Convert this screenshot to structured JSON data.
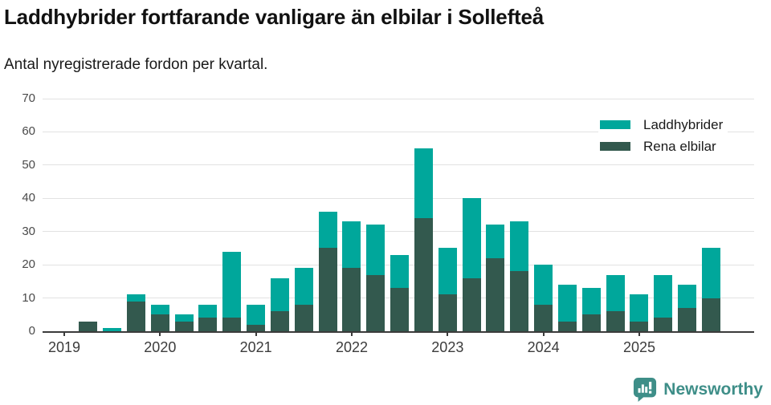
{
  "header": {
    "title": "Laddhybrider fortfarande vanligare än elbilar i Sollefteå",
    "subtitle": "Antal nyregistrerade fordon per kvartal."
  },
  "footer": {
    "brand": "Newsworthy",
    "brand_color": "#3e8e88",
    "logo_icon": "bar-chart-speech-bubble-icon"
  },
  "chart_data": {
    "type": "bar",
    "stacked": true,
    "title": "Laddhybrider fortfarande vanligare än elbilar i Sollefteå",
    "subtitle": "Antal nyregistrerade fordon per kvartal.",
    "categories": [
      "2019 Q1",
      "2019 Q2",
      "2019 Q3",
      "2019 Q4",
      "2020 Q1",
      "2020 Q2",
      "2020 Q3",
      "2020 Q4",
      "2021 Q1",
      "2021 Q2",
      "2021 Q3",
      "2021 Q4",
      "2022 Q1",
      "2022 Q2",
      "2022 Q3",
      "2022 Q4",
      "2023 Q1",
      "2023 Q2",
      "2023 Q3",
      "2023 Q4",
      "2024 Q1",
      "2024 Q2",
      "2024 Q3",
      "2024 Q4",
      "2025 Q1",
      "2025 Q2",
      "2025 Q3",
      "2025 Q4"
    ],
    "series": [
      {
        "name": "Laddhybrider",
        "color": "#00a79b",
        "values": [
          0,
          0,
          1,
          2,
          3,
          2,
          4,
          20,
          6,
          10,
          11,
          11,
          14,
          15,
          10,
          21,
          14,
          24,
          10,
          15,
          12,
          11,
          8,
          11,
          8,
          13,
          7,
          15
        ]
      },
      {
        "name": "Rena elbilar",
        "color": "#33594e",
        "values": [
          0,
          3,
          0,
          9,
          5,
          3,
          4,
          4,
          2,
          6,
          8,
          25,
          19,
          17,
          13,
          34,
          11,
          16,
          22,
          18,
          8,
          3,
          5,
          6,
          3,
          4,
          7,
          10
        ]
      }
    ],
    "stack_totals": [
      0,
      3,
      1,
      11,
      8,
      5,
      8,
      24,
      8,
      16,
      19,
      36,
      33,
      32,
      23,
      55,
      25,
      40,
      32,
      33,
      20,
      14,
      13,
      17,
      11,
      17,
      14,
      25
    ],
    "stack_bottom_series": "Rena elbilar",
    "xlabel": "",
    "ylabel": "",
    "x_tick_labels": [
      "2019",
      "2020",
      "2021",
      "2022",
      "2023",
      "2024",
      "2025"
    ],
    "ylim": [
      0,
      70
    ],
    "yticks": [
      0,
      10,
      20,
      30,
      40,
      50,
      60,
      70
    ],
    "grid": true,
    "legend_position": "top-right",
    "axis_color": "#3b3b3b",
    "grid_color": "#e2e2e2"
  }
}
